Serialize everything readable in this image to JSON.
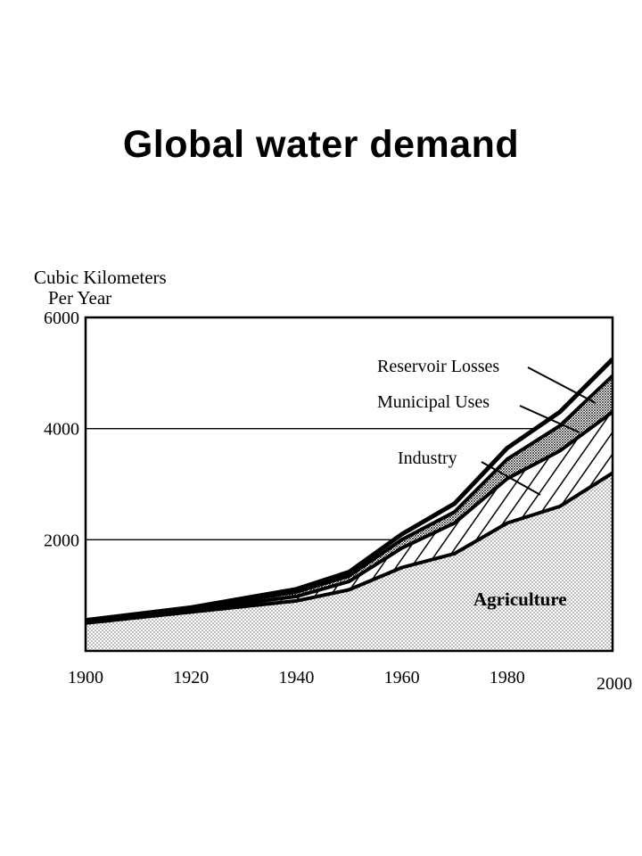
{
  "slide_title": "Global water demand",
  "chart_data": {
    "type": "area",
    "stacked": true,
    "title": "Global water demand",
    "ylabel_line1": "Cubic Kilometers",
    "ylabel_line2": "Per Year",
    "xlabel": "",
    "xlim": [
      1900,
      2000
    ],
    "ylim": [
      0,
      6000
    ],
    "x_ticks": [
      "1900",
      "1920",
      "1940",
      "1960",
      "1980",
      "2000"
    ],
    "y_ticks": [
      "2000",
      "4000",
      "6000"
    ],
    "x": [
      1900,
      1920,
      1940,
      1950,
      1960,
      1970,
      1980,
      1990,
      2000
    ],
    "series": [
      {
        "name": "Agriculture",
        "values": [
          500,
          700,
          900,
          1100,
          1500,
          1750,
          2300,
          2600,
          3200
        ],
        "fill": "dots"
      },
      {
        "name": "Industry",
        "values": [
          20,
          30,
          80,
          150,
          350,
          550,
          800,
          1000,
          1100
        ],
        "fill": "hatch"
      },
      {
        "name": "Municipal Uses",
        "values": [
          20,
          30,
          80,
          100,
          150,
          200,
          350,
          450,
          650
        ],
        "fill": "dense-dots"
      },
      {
        "name": "Reservoir Losses",
        "values": [
          10,
          20,
          50,
          70,
          100,
          150,
          200,
          250,
          300
        ],
        "fill": "white"
      }
    ],
    "grid": true,
    "colors": {
      "line": "#000000",
      "background": "#ffffff"
    }
  }
}
